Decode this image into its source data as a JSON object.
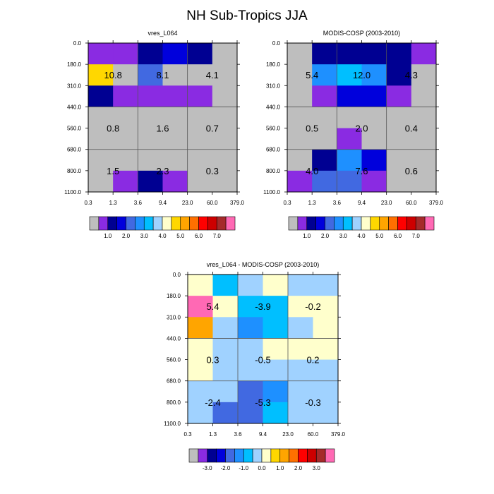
{
  "title": "NH Sub-Tropics JJA",
  "palette": {
    "gray": "#bebebe",
    "purple": "#8a2be2",
    "navy": "#000092",
    "blue": "#0000dc",
    "royal": "#4169e1",
    "azure": "#1e90ff",
    "sky": "#00bfff",
    "lightsky": "#a0d2ff",
    "cream": "#ffffcc",
    "gold": "#ffd700",
    "amber": "#ffa500",
    "orange": "#ff7000",
    "red": "#ff0000",
    "darkred": "#cd0000",
    "brown": "#a52a2a",
    "pink": "#ff69b4"
  },
  "chart_data": [
    {
      "type": "heatmap",
      "title": "vres_L064",
      "x_tick_labels": [
        "0.3",
        "1.3",
        "3.6",
        "9.4",
        "23.0",
        "60.0",
        "379.0"
      ],
      "y_tick_labels": [
        "0.0",
        "180.0",
        "310.0",
        "440.0",
        "560.0",
        "680.0",
        "800.0",
        "1100.0"
      ],
      "cells": [
        [
          "purple",
          "purple",
          "navy",
          "blue",
          "navy",
          "gray"
        ],
        [
          "gold",
          "gray",
          "royal",
          "gray",
          "gray",
          "gray"
        ],
        [
          "navy",
          "purple",
          "purple",
          "purple",
          "purple",
          "gray"
        ],
        [
          "gray",
          "gray",
          "gray",
          "gray",
          "gray",
          "gray"
        ],
        [
          "gray",
          "gray",
          "gray",
          "gray",
          "gray",
          "gray"
        ],
        [
          "gray",
          "gray",
          "gray",
          "gray",
          "gray",
          "gray"
        ],
        [
          "gray",
          "purple",
          "navy",
          "purple",
          "gray",
          "gray"
        ]
      ],
      "values": [
        {
          "text": "10.8",
          "col": 0,
          "row": 1
        },
        {
          "text": "8.1",
          "col": 1,
          "row": 1
        },
        {
          "text": "4.1",
          "col": 2,
          "row": 1
        },
        {
          "text": "0.8",
          "col": 0,
          "row": 2
        },
        {
          "text": "1.6",
          "col": 1,
          "row": 2
        },
        {
          "text": "0.7",
          "col": 2,
          "row": 2
        },
        {
          "text": "1.5",
          "col": 0,
          "row": 3
        },
        {
          "text": "2.3",
          "col": 1,
          "row": 3
        },
        {
          "text": "0.3",
          "col": 2,
          "row": 3
        }
      ],
      "colorbar": {
        "colors": [
          "gray",
          "purple",
          "navy",
          "blue",
          "royal",
          "azure",
          "sky",
          "lightsky",
          "cream",
          "gold",
          "amber",
          "orange",
          "red",
          "darkred",
          "brown",
          "pink"
        ],
        "labels": [
          "1.0",
          "2.0",
          "3.0",
          "4.0",
          "5.0",
          "6.0",
          "7.0"
        ]
      }
    },
    {
      "type": "heatmap",
      "title": "MODIS-COSP (2003-2010)",
      "x_tick_labels": [
        "0.3",
        "1.3",
        "3.6",
        "9.4",
        "23.0",
        "60.0",
        "379.0"
      ],
      "y_tick_labels": [
        "0.0",
        "180.0",
        "310.0",
        "440.0",
        "560.0",
        "680.0",
        "800.0",
        "1100.0"
      ],
      "cells": [
        [
          "gray",
          "navy",
          "navy",
          "navy",
          "navy",
          "purple"
        ],
        [
          "gray",
          "azure",
          "sky",
          "azure",
          "navy",
          "gray"
        ],
        [
          "gray",
          "purple",
          "blue",
          "blue",
          "purple",
          "gray"
        ],
        [
          "gray",
          "gray",
          "gray",
          "gray",
          "gray",
          "gray"
        ],
        [
          "gray",
          "gray",
          "purple",
          "gray",
          "gray",
          "gray"
        ],
        [
          "gray",
          "navy",
          "azure",
          "blue",
          "gray",
          "gray"
        ],
        [
          "purple",
          "royal",
          "royal",
          "purple",
          "gray",
          "gray"
        ]
      ],
      "values": [
        {
          "text": "5.4",
          "col": 0,
          "row": 1
        },
        {
          "text": "12.0",
          "col": 1,
          "row": 1
        },
        {
          "text": "4.3",
          "col": 2,
          "row": 1
        },
        {
          "text": "0.5",
          "col": 0,
          "row": 2
        },
        {
          "text": "2.0",
          "col": 1,
          "row": 2
        },
        {
          "text": "0.4",
          "col": 2,
          "row": 2
        },
        {
          "text": "4.0",
          "col": 0,
          "row": 3
        },
        {
          "text": "7.6",
          "col": 1,
          "row": 3
        },
        {
          "text": "0.6",
          "col": 2,
          "row": 3
        }
      ],
      "colorbar": {
        "colors": [
          "gray",
          "purple",
          "navy",
          "blue",
          "royal",
          "azure",
          "sky",
          "lightsky",
          "cream",
          "gold",
          "amber",
          "orange",
          "red",
          "darkred",
          "brown",
          "pink"
        ],
        "labels": [
          "1.0",
          "2.0",
          "3.0",
          "4.0",
          "5.0",
          "6.0",
          "7.0"
        ]
      }
    },
    {
      "type": "heatmap",
      "title": "vres_L064 - MODIS-COSP (2003-2010)",
      "x_tick_labels": [
        "0.3",
        "1.3",
        "3.6",
        "9.4",
        "23.0",
        "60.0",
        "379.0"
      ],
      "y_tick_labels": [
        "0.0",
        "180.0",
        "310.0",
        "440.0",
        "560.0",
        "680.0",
        "800.0",
        "1100.0"
      ],
      "cells": [
        [
          "cream",
          "sky",
          "lightsky",
          "cream",
          "lightsky",
          "lightsky"
        ],
        [
          "pink",
          "cream",
          "sky",
          "sky",
          "cream",
          "cream"
        ],
        [
          "amber",
          "lightsky",
          "azure",
          "sky",
          "lightsky",
          "cream"
        ],
        [
          "cream",
          "lightsky",
          "lightsky",
          "cream",
          "cream",
          "cream"
        ],
        [
          "cream",
          "lightsky",
          "lightsky",
          "lightsky",
          "lightsky",
          "lightsky"
        ],
        [
          "lightsky",
          "lightsky",
          "royal",
          "azure",
          "lightsky",
          "lightsky"
        ],
        [
          "lightsky",
          "royal",
          "royal",
          "sky",
          "lightsky",
          "lightsky"
        ]
      ],
      "values": [
        {
          "text": "5.4",
          "col": 0,
          "row": 1
        },
        {
          "text": "-3.9",
          "col": 1,
          "row": 1
        },
        {
          "text": "-0.2",
          "col": 2,
          "row": 1
        },
        {
          "text": "0.3",
          "col": 0,
          "row": 2
        },
        {
          "text": "-0.5",
          "col": 1,
          "row": 2
        },
        {
          "text": "0.2",
          "col": 2,
          "row": 2
        },
        {
          "text": "-2.4",
          "col": 0,
          "row": 3
        },
        {
          "text": "-5.3",
          "col": 1,
          "row": 3
        },
        {
          "text": "-0.3",
          "col": 2,
          "row": 3
        }
      ],
      "colorbar": {
        "colors": [
          "gray",
          "purple",
          "navy",
          "blue",
          "royal",
          "azure",
          "sky",
          "lightsky",
          "cream",
          "gold",
          "amber",
          "orange",
          "red",
          "darkred",
          "brown",
          "pink"
        ],
        "labels": [
          "-3.0",
          "-2.0",
          "-1.0",
          "0.0",
          "1.0",
          "2.0",
          "3.0"
        ]
      }
    }
  ]
}
